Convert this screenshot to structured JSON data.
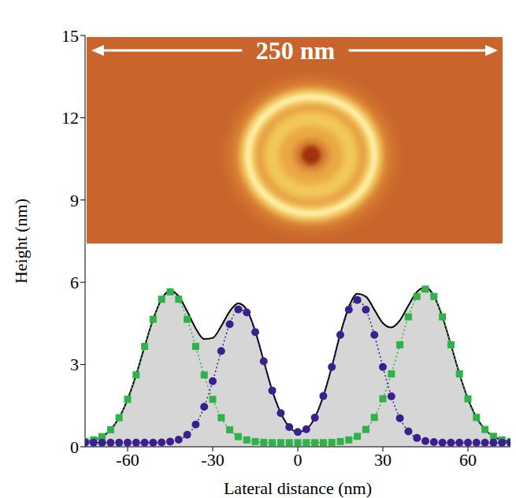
{
  "chart_data": {
    "type": "line",
    "annotation": "250 nm",
    "x_label": "Lateral distance (nm)",
    "y_label": "Height (nm)",
    "x": [
      -75,
      -72,
      -69,
      -66,
      -63,
      -60,
      -57,
      -54,
      -51,
      -48,
      -45,
      -42,
      -39,
      -36,
      -33,
      -30,
      -27,
      -24,
      -21,
      -18,
      -15,
      -12,
      -9,
      -6,
      -3,
      0,
      3,
      6,
      9,
      12,
      15,
      18,
      21,
      24,
      27,
      30,
      33,
      36,
      39,
      42,
      45,
      48,
      51,
      54,
      57,
      60,
      63,
      66,
      69,
      72,
      75
    ],
    "xlim": [
      -75,
      75
    ],
    "xticks": [
      -60,
      -30,
      0,
      30,
      60
    ],
    "ylim": [
      0,
      15
    ],
    "yticks": [
      0,
      3,
      6,
      9,
      12,
      15
    ],
    "series": [
      {
        "type": "area",
        "color": "#000000",
        "line_style": "solid",
        "values": [
          0.19,
          0.25,
          0.37,
          0.62,
          1.06,
          1.73,
          2.62,
          3.66,
          4.65,
          5.39,
          5.69,
          5.49,
          4.94,
          4.32,
          3.93,
          3.97,
          4.4,
          4.94,
          5.23,
          5.0,
          4.22,
          3.13,
          2.05,
          1.23,
          0.72,
          0.54,
          0.64,
          1.06,
          1.85,
          2.92,
          4.12,
          5.1,
          5.58,
          5.48,
          5.0,
          4.51,
          4.35,
          4.61,
          5.15,
          5.65,
          5.81,
          5.5,
          4.74,
          3.72,
          2.66,
          1.75,
          1.07,
          0.63,
          0.38,
          0.25,
          0.19
        ]
      },
      {
        "type": "line",
        "color": "#2fb24a",
        "marker": "square",
        "line_style": "dotted",
        "values": [
          0.19,
          0.25,
          0.37,
          0.62,
          1.06,
          1.73,
          2.62,
          3.66,
          4.65,
          5.38,
          5.65,
          5.38,
          4.65,
          3.66,
          2.62,
          1.73,
          1.06,
          0.62,
          0.37,
          0.25,
          0.19,
          0.16,
          0.15,
          0.15,
          0.15,
          0.15,
          0.15,
          0.15,
          0.15,
          0.16,
          0.19,
          0.25,
          0.38,
          0.63,
          1.07,
          1.75,
          2.66,
          3.72,
          4.74,
          5.48,
          5.75,
          5.48,
          4.74,
          3.72,
          2.66,
          1.75,
          1.07,
          0.63,
          0.38,
          0.25,
          0.19
        ]
      },
      {
        "type": "line",
        "color": "#3b1f8e",
        "marker": "circle",
        "line_style": "dotted",
        "values": [
          0.15,
          0.15,
          0.15,
          0.15,
          0.15,
          0.15,
          0.15,
          0.15,
          0.15,
          0.16,
          0.19,
          0.26,
          0.44,
          0.81,
          1.46,
          2.39,
          3.49,
          4.47,
          5.01,
          4.9,
          4.18,
          3.12,
          2.05,
          1.23,
          0.72,
          0.54,
          0.64,
          1.06,
          1.85,
          2.91,
          4.08,
          5.0,
          5.35,
          5.0,
          4.08,
          2.91,
          1.84,
          1.04,
          0.56,
          0.32,
          0.21,
          0.17,
          0.15,
          0.15,
          0.15,
          0.15,
          0.15,
          0.15,
          0.15,
          0.15,
          0.15
        ]
      }
    ]
  }
}
